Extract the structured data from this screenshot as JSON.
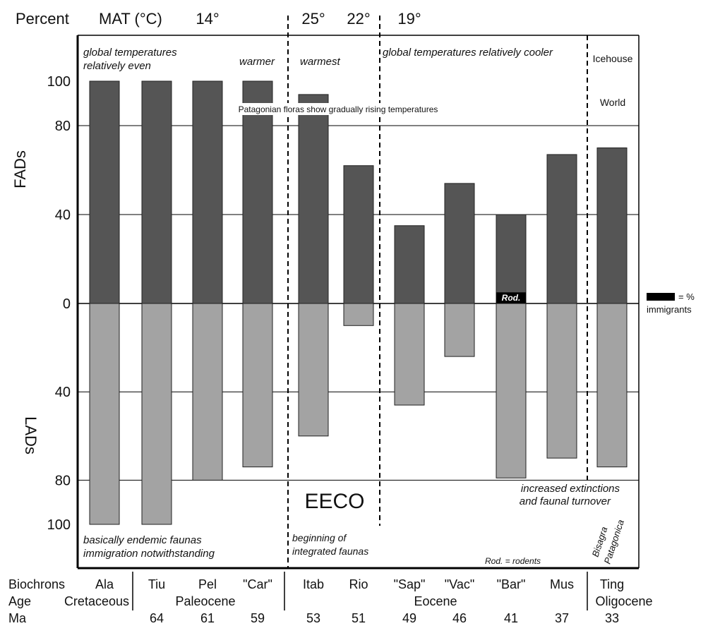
{
  "chart_data": {
    "type": "bar",
    "header": {
      "percent": "Percent",
      "mat": "MAT (°C)",
      "temps": [
        {
          "label": "14°",
          "at": "Pel"
        },
        {
          "label": "25°",
          "at": "Itab"
        },
        {
          "label": "22°",
          "at": "Rio"
        },
        {
          "label": "19°",
          "at": "\"Sap\""
        }
      ]
    },
    "axis": {
      "fads_label": "FADs",
      "lads_label": "LADs",
      "ticks_up": [
        {
          "v": 100,
          "label": "100"
        },
        {
          "v": 80,
          "label": "80"
        },
        {
          "v": 40,
          "label": "40"
        },
        {
          "v": 0,
          "label": "0"
        }
      ],
      "ticks_down": [
        {
          "v": 40,
          "label": "40"
        },
        {
          "v": 80,
          "label": "80"
        },
        {
          "v": 100,
          "label": "100"
        }
      ],
      "gridlines_up": [
        80,
        40,
        0
      ],
      "gridlines_down": [
        40,
        80
      ]
    },
    "categories": [
      "Ala",
      "Tiu",
      "Pel",
      "\"Car\"",
      "Itab",
      "Rio",
      "\"Sap\"",
      "\"Vac\"",
      "\"Bar\"",
      "Mus",
      "Ting"
    ],
    "ma": [
      "",
      "64",
      "61",
      "59",
      "53",
      "51",
      "49",
      "46",
      "41",
      "37",
      "33"
    ],
    "series": [
      {
        "name": "FADs",
        "color": "#555555",
        "values": [
          100,
          100,
          100,
          100,
          94,
          62,
          35,
          54,
          40,
          67,
          70
        ]
      },
      {
        "name": "LADs",
        "color": "#a3a3a3",
        "values": [
          100,
          100,
          80,
          74,
          60,
          10,
          46,
          24,
          79,
          70,
          74
        ]
      }
    ],
    "immigrant_bars": [
      {
        "category": "\"Bar\"",
        "value": 5,
        "label": "Rod."
      }
    ],
    "legend": {
      "swatch_color": "#000000",
      "line1": "= %",
      "line2": "immigrants"
    },
    "annotations": {
      "global_even_1": "global temperatures",
      "global_even_2": "relatively even",
      "warmer": "warmer",
      "warmest": "warmest",
      "cooler": "global temperatures relatively cooler",
      "icehouse_1": "Icehouse",
      "icehouse_2": "World",
      "patagonian": "Patagonian floras show gradually rising temperatures",
      "eeco": "EECO",
      "endemic_1": "basically endemic faunas",
      "endemic_2": "immigration notwithstanding",
      "integrated_1": "beginning of",
      "integrated_2": "integrated faunas",
      "extinctions_1": "increased extinctions",
      "extinctions_2": "and faunal turnover",
      "rodents": "Rod. = rodents",
      "bisagra_1": "Bisagra",
      "bisagra_2": "Patagonica"
    },
    "bottom": {
      "biochrons_label": "Biochrons",
      "age_label": "Age",
      "ma_label": "Ma",
      "ages": [
        "Cretaceous",
        "Paleocene",
        "Eocene",
        "Oligocene"
      ]
    }
  }
}
